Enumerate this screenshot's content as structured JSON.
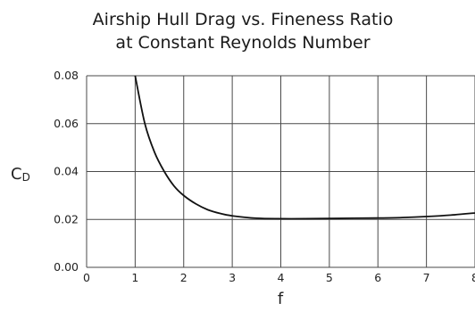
{
  "chart_data": {
    "type": "line",
    "title_lines": [
      "Airship Hull Drag vs. Fineness Ratio",
      "at Constant Reynolds Number"
    ],
    "xlabel": "f",
    "ylabel": "C",
    "ylabel_subscript": "D",
    "xlim": [
      0,
      8
    ],
    "ylim": [
      0,
      0.08
    ],
    "x_ticks": [
      "0",
      "1",
      "2",
      "3",
      "4",
      "5",
      "6",
      "7",
      "8"
    ],
    "y_ticks": [
      "0.00",
      "0.02",
      "0.04",
      "0.06",
      "0.08"
    ],
    "grid": true,
    "series": [
      {
        "x": [
          1.0,
          1.2,
          1.4,
          1.6,
          1.8,
          2.0,
          2.25,
          2.5,
          2.75,
          3.0,
          3.5,
          4.0,
          4.5,
          5.0,
          5.5,
          6.0,
          6.5,
          7.0,
          7.5,
          8.0
        ],
        "y": [
          0.08,
          0.06,
          0.048,
          0.04,
          0.034,
          0.03,
          0.0265,
          0.024,
          0.0225,
          0.0215,
          0.0205,
          0.0203,
          0.0203,
          0.0204,
          0.0205,
          0.0206,
          0.0208,
          0.0212,
          0.0218,
          0.0227
        ],
        "color": "#111111"
      }
    ]
  }
}
